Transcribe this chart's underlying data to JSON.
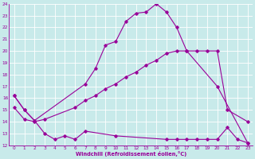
{
  "xlabel": "Windchill (Refroidissement éolien,°C)",
  "bg_color": "#c8eaea",
  "grid_color": "#ffffff",
  "line_color": "#990099",
  "xlim": [
    -0.5,
    23.5
  ],
  "ylim": [
    12,
    24
  ],
  "xticks": [
    0,
    1,
    2,
    3,
    4,
    5,
    6,
    7,
    8,
    9,
    10,
    11,
    12,
    13,
    14,
    15,
    16,
    17,
    18,
    19,
    20,
    21,
    22,
    23
  ],
  "yticks": [
    12,
    13,
    14,
    15,
    16,
    17,
    18,
    19,
    20,
    21,
    22,
    23,
    24
  ],
  "line1_x": [
    0,
    1,
    2,
    7,
    8,
    9,
    10,
    11,
    12,
    13,
    14,
    15,
    16,
    17,
    20,
    23
  ],
  "line1_y": [
    16.2,
    15.0,
    14.1,
    17.2,
    18.5,
    20.5,
    20.8,
    22.5,
    23.2,
    23.3,
    24.0,
    23.3,
    22.0,
    20.0,
    17.0,
    12.2
  ],
  "line2_x": [
    0,
    1,
    2,
    3,
    6,
    7,
    8,
    9,
    10,
    11,
    12,
    13,
    14,
    15,
    16,
    17,
    18,
    19,
    20,
    21,
    23
  ],
  "line2_y": [
    15.2,
    14.2,
    14.0,
    14.2,
    15.2,
    15.8,
    16.2,
    16.8,
    17.2,
    17.8,
    18.2,
    18.8,
    19.2,
    19.8,
    20.0,
    20.0,
    20.0,
    20.0,
    20.0,
    15.0,
    14.0
  ],
  "line3_x": [
    0,
    1,
    2,
    3,
    4,
    5,
    6,
    7,
    10,
    15,
    16,
    17,
    18,
    19,
    20,
    21,
    22,
    23
  ],
  "line3_y": [
    16.2,
    15.0,
    14.1,
    13.0,
    12.5,
    12.8,
    12.5,
    13.2,
    12.8,
    12.5,
    12.5,
    12.5,
    12.5,
    12.5,
    12.5,
    13.5,
    12.5,
    12.2
  ]
}
